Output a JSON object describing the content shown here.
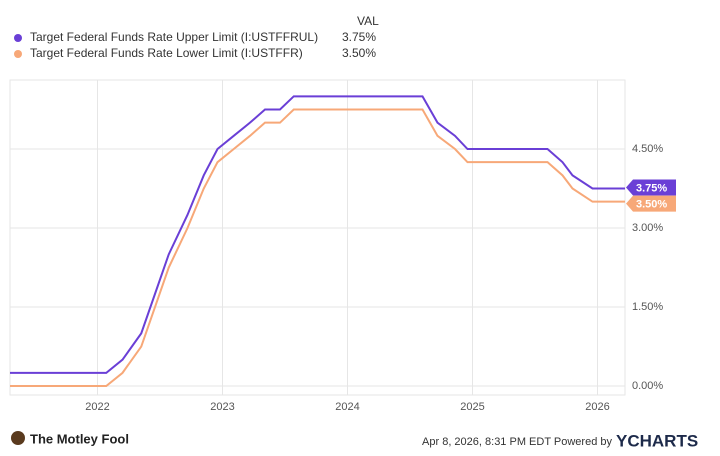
{
  "chart_data": {
    "type": "line",
    "legend_header": "VAL",
    "series": [
      {
        "name": "Target Federal Funds Rate Upper Limit (I:USTFFRUL)",
        "color": "#6a3fd6",
        "latest_label": "3.75%",
        "x": [
          2021.3,
          2022.07,
          2022.2,
          2022.35,
          2022.46,
          2022.57,
          2022.72,
          2022.85,
          2022.96,
          2023.09,
          2023.22,
          2023.34,
          2023.46,
          2023.57,
          2024.6,
          2024.72,
          2024.86,
          2024.96,
          2025.6,
          2025.72,
          2025.8,
          2025.96,
          2026.22
        ],
        "values": [
          0.25,
          0.25,
          0.5,
          1.0,
          1.75,
          2.5,
          3.25,
          4.0,
          4.5,
          4.75,
          5.0,
          5.25,
          5.25,
          5.5,
          5.5,
          5.0,
          4.75,
          4.5,
          4.5,
          4.25,
          4.0,
          3.75,
          3.75
        ]
      },
      {
        "name": "Target Federal Funds Rate Lower Limit (I:USTFFR)",
        "color": "#f7a878",
        "latest_label": "3.50%",
        "x": [
          2021.3,
          2022.07,
          2022.2,
          2022.35,
          2022.46,
          2022.57,
          2022.72,
          2022.85,
          2022.96,
          2023.09,
          2023.22,
          2023.34,
          2023.46,
          2023.57,
          2024.6,
          2024.72,
          2024.86,
          2024.96,
          2025.6,
          2025.72,
          2025.8,
          2025.96,
          2026.22
        ],
        "values": [
          0.0,
          0.0,
          0.25,
          0.75,
          1.5,
          2.25,
          3.0,
          3.75,
          4.25,
          4.5,
          4.75,
          5.0,
          5.0,
          5.25,
          5.25,
          4.75,
          4.5,
          4.25,
          4.25,
          4.0,
          3.75,
          3.5,
          3.5
        ]
      }
    ],
    "xlim": [
      2021.3,
      2026.22
    ],
    "xticks": [
      2022,
      2023,
      2024,
      2025,
      2026
    ],
    "ylim": [
      -0.17,
      5.81
    ],
    "yticks": [
      {
        "value": 0,
        "label": "0.00%"
      },
      {
        "value": 1.5,
        "label": "1.50%"
      },
      {
        "value": 3,
        "label": "3.00%"
      },
      {
        "value": 4.5,
        "label": "4.50%"
      }
    ],
    "grid": true
  },
  "footer": {
    "brand": "The Motley Fool",
    "timestamp": "Apr 8, 2026, 8:31 PM EDT Powered by",
    "provider": "YCHARTS"
  }
}
